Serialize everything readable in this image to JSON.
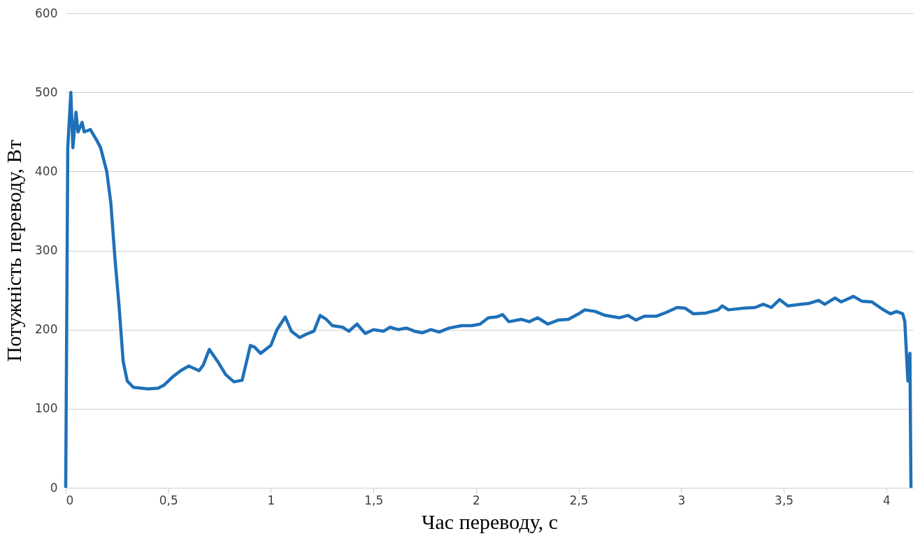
{
  "chart_data": {
    "type": "line",
    "xlabel": "Час переводу, с",
    "ylabel": "Потужність переводу, Вт",
    "xlim": [
      0,
      4.13
    ],
    "ylim": [
      0,
      600
    ],
    "xticks": [
      0,
      {
        "value": 0.5,
        "label": "0,5"
      },
      1,
      {
        "value": 1.5,
        "label": "1,5"
      },
      2,
      {
        "value": 2.5,
        "label": "2,5"
      },
      3,
      {
        "value": 3.5,
        "label": "3,5"
      },
      4
    ],
    "yticks": [
      0,
      100,
      200,
      300,
      400,
      500,
      600
    ],
    "grid": "y",
    "legend": false,
    "marker": "none",
    "line_style": "solid",
    "series": [
      {
        "color": "#1f70b8",
        "x": [
          0,
          0.01,
          0.025,
          0.035,
          0.05,
          0.06,
          0.08,
          0.09,
          0.12,
          0.15,
          0.17,
          0.2,
          0.22,
          0.24,
          0.26,
          0.28,
          0.3,
          0.33,
          0.4,
          0.45,
          0.48,
          0.52,
          0.56,
          0.6,
          0.65,
          0.67,
          0.7,
          0.74,
          0.78,
          0.82,
          0.86,
          0.9,
          0.92,
          0.95,
          1.0,
          1.03,
          1.07,
          1.1,
          1.14,
          1.18,
          1.21,
          1.24,
          1.27,
          1.3,
          1.35,
          1.38,
          1.42,
          1.46,
          1.5,
          1.55,
          1.58,
          1.62,
          1.66,
          1.7,
          1.74,
          1.78,
          1.82,
          1.87,
          1.93,
          1.98,
          2.02,
          2.06,
          2.1,
          2.13,
          2.16,
          2.22,
          2.26,
          2.3,
          2.35,
          2.4,
          2.45,
          2.5,
          2.53,
          2.58,
          2.63,
          2.7,
          2.74,
          2.78,
          2.82,
          2.88,
          2.93,
          2.98,
          3.02,
          3.06,
          3.12,
          3.18,
          3.2,
          3.23,
          3.3,
          3.36,
          3.4,
          3.44,
          3.48,
          3.52,
          3.58,
          3.62,
          3.67,
          3.7,
          3.75,
          3.78,
          3.84,
          3.88,
          3.93,
          3.98,
          4.02,
          4.05,
          4.08,
          4.09,
          4.105,
          4.115,
          4.12
        ],
        "values": [
          0,
          430,
          500,
          430,
          475,
          450,
          462,
          450,
          453,
          440,
          430,
          400,
          360,
          290,
          230,
          160,
          135,
          127,
          125,
          126,
          130,
          140,
          148,
          154,
          148,
          155,
          175,
          160,
          143,
          134,
          136,
          180,
          178,
          170,
          180,
          200,
          216,
          198,
          190,
          195,
          198,
          218,
          213,
          205,
          203,
          198,
          207,
          195,
          200,
          198,
          203,
          200,
          202,
          198,
          196,
          200,
          197,
          202,
          205,
          205,
          207,
          215,
          216,
          219,
          210,
          213,
          210,
          215,
          207,
          212,
          213,
          220,
          225,
          223,
          218,
          215,
          218,
          212,
          217,
          217,
          222,
          228,
          227,
          220,
          221,
          225,
          230,
          225,
          227,
          228,
          232,
          228,
          238,
          230,
          232,
          233,
          237,
          232,
          240,
          235,
          242,
          236,
          235,
          226,
          220,
          223,
          220,
          210,
          135,
          170,
          0
        ]
      }
    ]
  }
}
